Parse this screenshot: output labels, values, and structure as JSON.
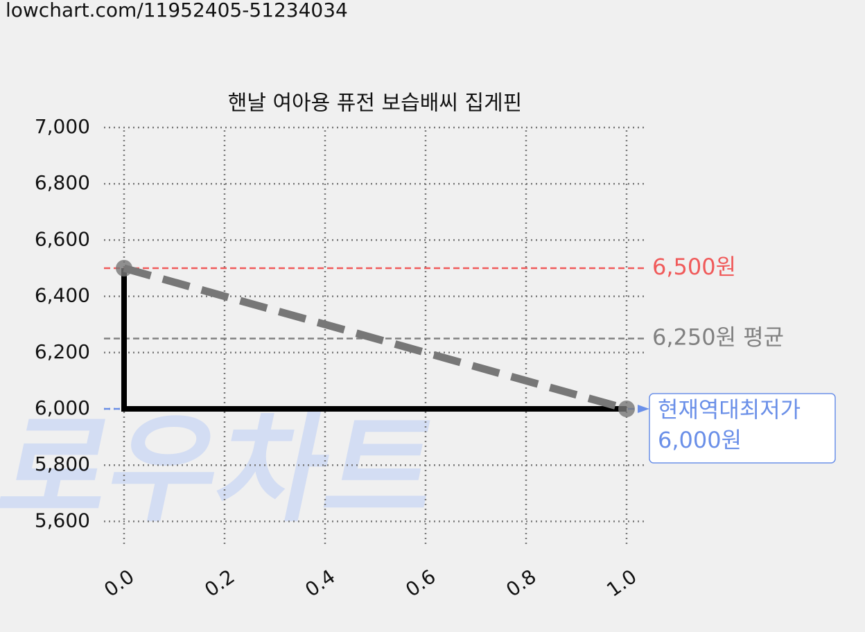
{
  "source_url": "lowchart.com/11952405-51234034",
  "chart_data": {
    "type": "line",
    "title": "핸날 여아용 퓨전 보습배씨 집게핀",
    "watermark": "로우차트",
    "xlim": [
      -0.04,
      1.04
    ],
    "xticks": [
      {
        "value": 0,
        "label": "0.0"
      },
      0.2,
      0.4,
      0.6,
      0.8,
      {
        "value": 1,
        "label": "1.0"
      }
    ],
    "ylim": [
      5500,
      7000
    ],
    "yticks": [
      {
        "value": 5600,
        "label": "5,600"
      },
      {
        "value": 5800,
        "label": "5,800"
      },
      {
        "value": 6000,
        "label": "6,000"
      },
      {
        "value": 6200,
        "label": "6,200"
      },
      {
        "value": 6400,
        "label": "6,400"
      },
      {
        "value": 6600,
        "label": "6,600"
      },
      {
        "value": 6800,
        "label": "6,800"
      },
      {
        "value": 7000,
        "label": "7,000"
      }
    ],
    "grid": true,
    "series": [
      {
        "color": "#000000",
        "style": "solid",
        "x": [
          0,
          0,
          1
        ],
        "values": [
          6500,
          6000,
          6000
        ]
      },
      {
        "color": "#777777",
        "style": "dashed",
        "markers": true,
        "x": [
          0,
          1
        ],
        "values": [
          6500,
          6000
        ]
      }
    ],
    "reference_lines": [
      {
        "value": 6500,
        "label": "6,500원",
        "color": "#f05a5a"
      },
      {
        "value": 6250,
        "label": "6,250원 평균",
        "color": "#808080"
      },
      {
        "value": 6000,
        "label_lines": [
          "현재역대최저가",
          "6,000원"
        ],
        "color": "#6a8fe8",
        "boxed": true
      }
    ]
  }
}
